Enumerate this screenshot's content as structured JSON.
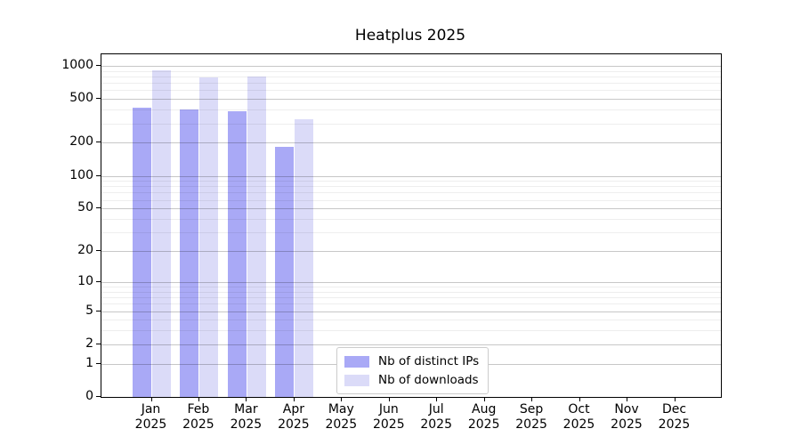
{
  "chart_data": {
    "type": "bar",
    "title": "Heatplus 2025",
    "xlabel": "",
    "ylabel": "",
    "y_scale": "log1p",
    "grid": "horizontal",
    "ylim": [
      0,
      1270
    ],
    "y_major_ticks": [
      0,
      1,
      2,
      5,
      10,
      20,
      50,
      100,
      200,
      500,
      1000
    ],
    "y_minor_ticks": [
      3,
      4,
      6,
      7,
      8,
      9,
      30,
      40,
      60,
      70,
      80,
      90,
      300,
      400,
      600,
      700,
      800,
      900
    ],
    "categories": [
      "Jan",
      "Feb",
      "Mar",
      "Apr",
      "May",
      "Jun",
      "Jul",
      "Aug",
      "Sep",
      "Oct",
      "Nov",
      "Dec"
    ],
    "x_tick_year_line": "2025",
    "series": [
      {
        "name": "Nb of distinct IPs",
        "color": "#a9a9f6",
        "values": [
          420,
          400,
          387,
          183,
          0,
          0,
          0,
          0,
          0,
          0,
          0,
          0
        ]
      },
      {
        "name": "Nb of downloads",
        "color": "#dbdbf8",
        "values": [
          910,
          790,
          800,
          330,
          0,
          0,
          0,
          0,
          0,
          0,
          0,
          0
        ]
      }
    ],
    "legend_position": "inside-bottom-center",
    "colors": {
      "spine": "#000000",
      "grid_major": "#c7c7c7",
      "grid_minor": "#ededed",
      "background": "#ffffff"
    }
  }
}
